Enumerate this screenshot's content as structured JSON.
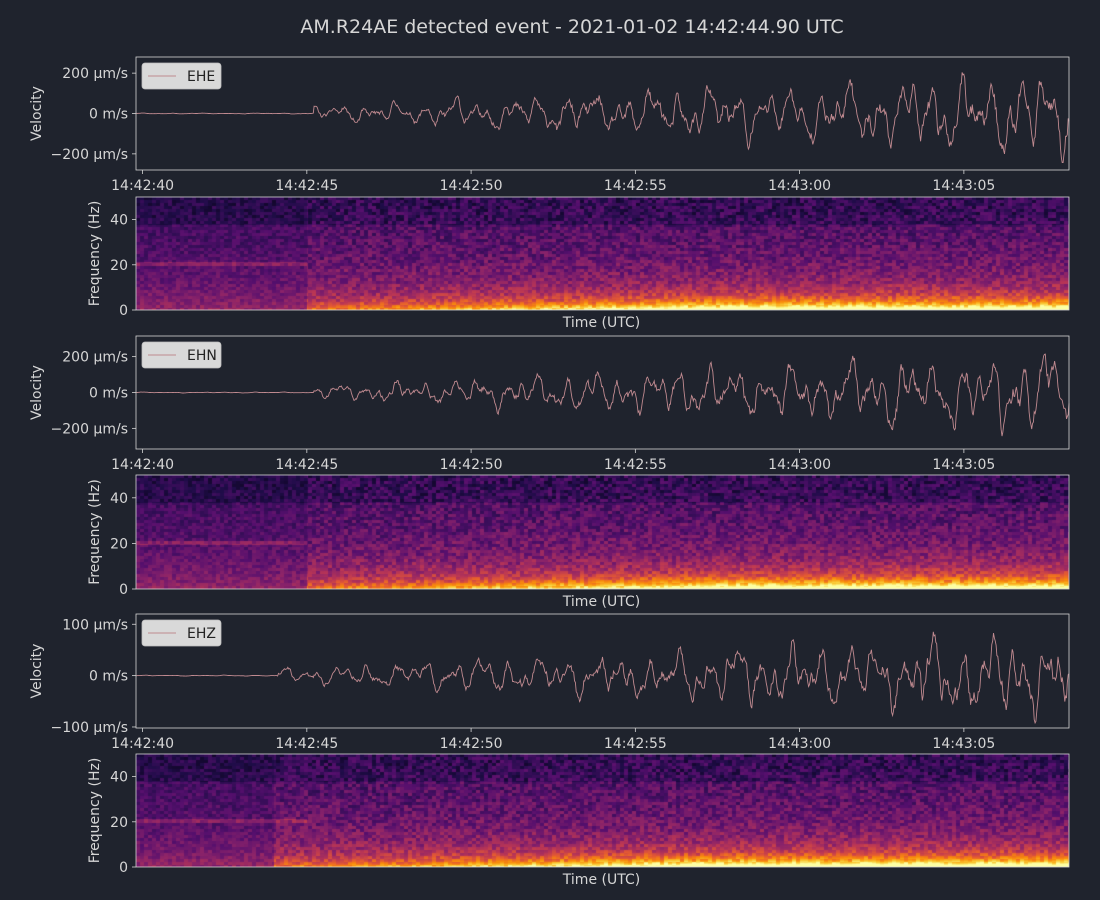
{
  "figure": {
    "title": "AM.R24AE detected event - 2021-01-02 14:42:44.90 UTC",
    "background_color": "#1f232d",
    "frame_color": "#d6d6d6",
    "trace_color": "#c08a90",
    "legend_box_color": "#d9d9d9"
  },
  "chart_data": [
    {
      "type": "line",
      "channel": "EHE",
      "ylabel": "Velocity",
      "legend": "EHE",
      "xlim": [
        "14:42:39.8",
        "14:43:08.2"
      ],
      "ylim": [
        -280,
        280
      ],
      "y_ticks": [
        {
          "value": 200,
          "label": "200 µm/s"
        },
        {
          "value": 0,
          "label": "0 m/s"
        },
        {
          "value": -200,
          "label": "−200 µm/s"
        }
      ],
      "x_ticks": [
        "14:42:40",
        "14:42:45",
        "14:42:50",
        "14:42:55",
        "14:43:00",
        "14:43:05"
      ],
      "x_tick_seconds": [
        0,
        5,
        10,
        15,
        20,
        25
      ],
      "onset_s": 5.2,
      "amp_scale": 190,
      "seed": 11
    },
    {
      "type": "heatmap",
      "channel": "EHE",
      "ylabel": "Frequency (Hz)",
      "xlabel": "Time (UTC)",
      "ylim": [
        0,
        50
      ],
      "y_ticks": [
        0,
        20,
        40
      ],
      "colormap": "inferno",
      "onset_s": 5.0,
      "seed": 12
    },
    {
      "type": "line",
      "channel": "EHN",
      "ylabel": "Velocity",
      "legend": "EHN",
      "xlim": [
        "14:42:39.8",
        "14:43:08.2"
      ],
      "ylim": [
        -315,
        315
      ],
      "y_ticks": [
        {
          "value": 200,
          "label": "200 µm/s"
        },
        {
          "value": 0,
          "label": "0 m/s"
        },
        {
          "value": -200,
          "label": "−200 µm/s"
        }
      ],
      "x_ticks": [
        "14:42:40",
        "14:42:45",
        "14:42:50",
        "14:42:55",
        "14:43:00",
        "14:43:05"
      ],
      "x_tick_seconds": [
        0,
        5,
        10,
        15,
        20,
        25
      ],
      "onset_s": 5.2,
      "amp_scale": 210,
      "seed": 21
    },
    {
      "type": "heatmap",
      "channel": "EHN",
      "ylabel": "Frequency (Hz)",
      "xlabel": "Time (UTC)",
      "ylim": [
        0,
        50
      ],
      "y_ticks": [
        0,
        20,
        40
      ],
      "colormap": "inferno",
      "onset_s": 5.0,
      "seed": 22
    },
    {
      "type": "line",
      "channel": "EHZ",
      "ylabel": "Velocity",
      "legend": "EHZ",
      "xlim": [
        "14:42:39.8",
        "14:43:08.2"
      ],
      "ylim": [
        -102,
        120
      ],
      "y_ticks": [
        {
          "value": 100,
          "label": "100 µm/s"
        },
        {
          "value": 0,
          "label": "0 m/s"
        },
        {
          "value": -100,
          "label": "−100 µm/s"
        }
      ],
      "x_ticks": [
        "14:42:40",
        "14:42:45",
        "14:42:50",
        "14:42:55",
        "14:43:00",
        "14:43:05"
      ],
      "x_tick_seconds": [
        0,
        5,
        10,
        15,
        20,
        25
      ],
      "onset_s": 4.1,
      "amp_scale": 75,
      "seed": 31
    },
    {
      "type": "heatmap",
      "channel": "EHZ",
      "ylabel": "Frequency (Hz)",
      "xlabel": "Time (UTC)",
      "ylim": [
        0,
        50
      ],
      "y_ticks": [
        0,
        20,
        40
      ],
      "colormap": "inferno",
      "onset_s": 4.0,
      "seed": 32
    }
  ]
}
